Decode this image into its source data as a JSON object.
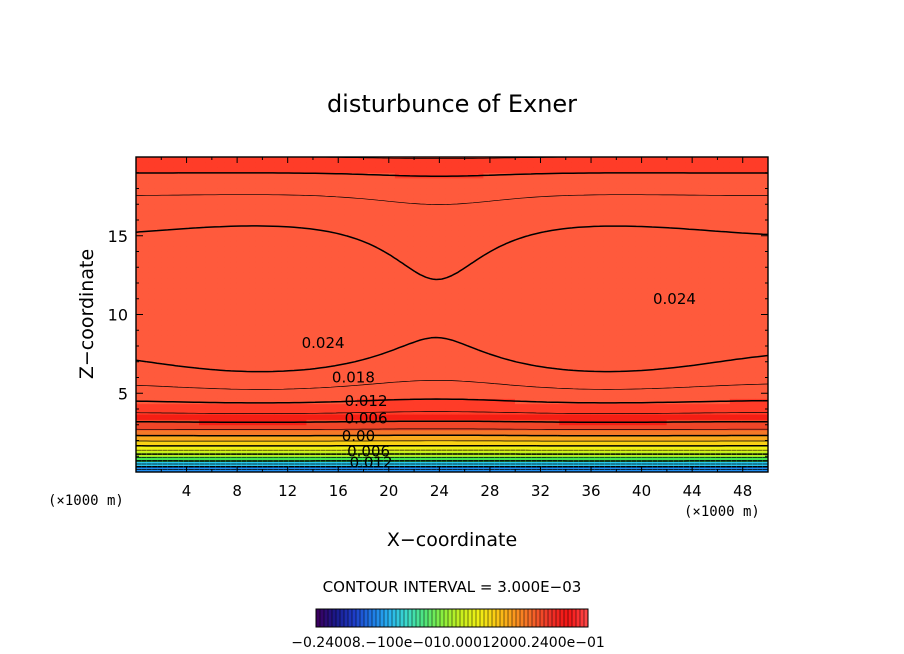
{
  "chart_data": {
    "type": "contour",
    "title": "disturbunce of Exner",
    "xlabel": "X−coordinate",
    "ylabel": "Z−coordinate",
    "x_unit_left": "(×1000 m)",
    "x_unit_right": "(×1000 m)",
    "xlim": [
      0,
      50
    ],
    "ylim": [
      0,
      20
    ],
    "x_ticks": [
      4,
      8,
      12,
      16,
      20,
      24,
      28,
      32,
      36,
      40,
      44,
      48
    ],
    "x_tick_labels": [
      "4",
      "8",
      "12",
      "16",
      "20",
      "24",
      "28",
      "32",
      "36",
      "40",
      "44",
      "48"
    ],
    "y_ticks": [
      5,
      10,
      15
    ],
    "y_tick_labels": [
      "5",
      "10",
      "15"
    ],
    "contour_interval_text": "CONTOUR INTERVAL = 3.000E−03",
    "contour_interval": 0.003,
    "value_range": [
      -0.024,
      0.027
    ],
    "contour_labels": [
      {
        "text": "0.024",
        "x": 14.8,
        "z": 8.2
      },
      {
        "text": "0.024",
        "x": 42.6,
        "z": 11.0
      },
      {
        "text": "0.018",
        "x": 17.2,
        "z": 6.0
      },
      {
        "text": "0.012",
        "x": 18.2,
        "z": 4.5
      },
      {
        "text": "0.006",
        "x": 18.2,
        "z": 3.4
      },
      {
        "text": "0.00",
        "x": 17.6,
        "z": 2.3
      },
      {
        "text": "0.006",
        "x": 18.4,
        "z": 1.3
      },
      {
        "text": "0.012",
        "x": 18.6,
        "z": 0.6
      }
    ],
    "colorbar": {
      "colors": [
        "#3a0060",
        "#1a1a8c",
        "#1e3cc8",
        "#1e78e6",
        "#28b4f0",
        "#3cdcc8",
        "#50e678",
        "#8cf03c",
        "#c8f01e",
        "#f0f014",
        "#fac814",
        "#fa961e",
        "#f56428",
        "#f03228",
        "#f51414",
        "#ff4646"
      ],
      "labels_text": "−0.24008.−100e−010.00012000.2400e−01"
    }
  }
}
